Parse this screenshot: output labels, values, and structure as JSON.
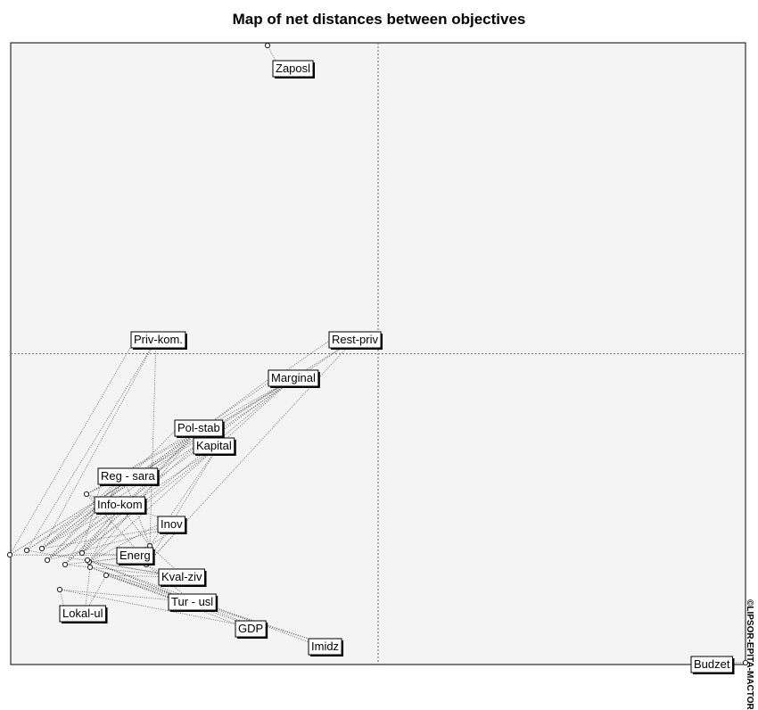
{
  "title": "Map of net distances between objectives",
  "copyright": "©LIPSOR-EPITA-MACTOR",
  "colors": {
    "plot_bg": "#f4f4f4",
    "frame": "#000000",
    "axis": "#6e6e6e",
    "link": "#555555",
    "label_bg": "#ffffff"
  },
  "chart_data": {
    "type": "network-map",
    "title": "Map of net distances between objectives",
    "xlim": [
      -1,
      1
    ],
    "ylim": [
      -1,
      1
    ],
    "axes_dashed_at_origin": true,
    "nodes": [
      {
        "id": "Zaposl",
        "label": "Zaposl",
        "x": -0.29,
        "y": 0.96
      },
      {
        "id": "Priv-kom.",
        "label": "Priv-kom.",
        "x": -0.95,
        "y": -0.37
      },
      {
        "id": "Rest-priv",
        "label": "Rest-priv",
        "x": -0.98,
        "y": -0.38
      },
      {
        "id": "Marginal",
        "label": "Marginal",
        "x": -0.93,
        "y": -0.39
      },
      {
        "id": "Pol-stab",
        "label": "Pol-stab",
        "x": -0.77,
        "y": -0.39
      },
      {
        "id": "Kapital",
        "label": "Kapital",
        "x": -0.78,
        "y": -0.41
      },
      {
        "id": "Reg - sara",
        "label": "Reg - sara",
        "x": -0.82,
        "y": -0.39
      },
      {
        "id": "Info-kom",
        "label": "Info-kom",
        "x": -0.81,
        "y": -0.26
      },
      {
        "id": "Inov",
        "label": "Inov",
        "x": -0.68,
        "y": -0.4
      },
      {
        "id": "Energ",
        "label": "Energ",
        "x": -0.6,
        "y": -0.38
      },
      {
        "id": "Kval-ziv",
        "label": "Kval-ziv",
        "x": -0.53,
        "y": -0.38
      },
      {
        "id": "Tur - usl",
        "label": "Tur - usl",
        "x": -0.63,
        "y": -0.43
      },
      {
        "id": "Lokal-ul",
        "label": "Lokal-ul",
        "x": -0.85,
        "y": -0.44
      },
      {
        "id": "GDP",
        "label": "GDP",
        "x": -0.78,
        "y": -0.42
      },
      {
        "id": "Imidz",
        "label": "Imidz",
        "x": -0.69,
        "y": -0.41
      },
      {
        "id": "Budzet",
        "label": "Budzet",
        "x": 0.99,
        "y": -0.99
      }
    ],
    "links": [
      [
        "Priv-kom.",
        "Rest-priv"
      ],
      [
        "Priv-kom.",
        "Marginal"
      ],
      [
        "Priv-kom.",
        "Energ"
      ],
      [
        "Rest-priv",
        "Marginal"
      ],
      [
        "Rest-priv",
        "Kval-ziv"
      ],
      [
        "Marginal",
        "Pol-stab"
      ],
      [
        "Marginal",
        "Reg - sara"
      ],
      [
        "Marginal",
        "Info-kom"
      ],
      [
        "Marginal",
        "Inov"
      ],
      [
        "Pol-stab",
        "Reg - sara"
      ],
      [
        "Pol-stab",
        "Kapital"
      ],
      [
        "Pol-stab",
        "Info-kom"
      ],
      [
        "Pol-stab",
        "Inov"
      ],
      [
        "Kapital",
        "Reg - sara"
      ],
      [
        "Kapital",
        "Energ"
      ],
      [
        "Kapital",
        "Kval-ziv"
      ],
      [
        "Reg - sara",
        "Info-kom"
      ],
      [
        "Reg - sara",
        "Energ"
      ],
      [
        "Info-kom",
        "Energ"
      ],
      [
        "Info-kom",
        "Inov"
      ],
      [
        "Inov",
        "Energ"
      ],
      [
        "Inov",
        "Kval-ziv"
      ],
      [
        "Energ",
        "Kval-ziv"
      ],
      [
        "Kval-ziv",
        "Tur - usl"
      ],
      [
        "Tur - usl",
        "GDP"
      ],
      [
        "Tur - usl",
        "Imidz"
      ],
      [
        "GDP",
        "Imidz"
      ],
      [
        "Lokal-ul",
        "Tur - usl"
      ],
      [
        "Lokal-ul",
        "GDP"
      ]
    ]
  }
}
